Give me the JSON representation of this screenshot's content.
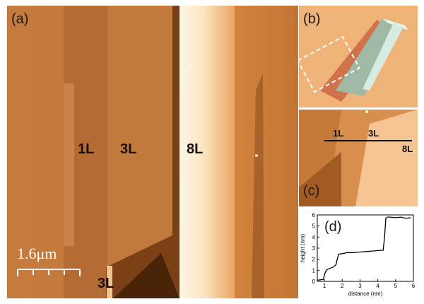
{
  "panel_a": {
    "label": "(a)",
    "layers": [
      "1L",
      "3L",
      "8L",
      "3L"
    ],
    "scale_bar": "1.6μm"
  },
  "panel_b": {
    "label": "(b)"
  },
  "panel_c": {
    "label": "(c)",
    "layers": [
      "1L",
      "3L",
      "8L"
    ]
  },
  "chart_data": {
    "type": "line",
    "panel_label": "(d)",
    "xlabel": "distance (nm)",
    "ylabel": "height (nm)",
    "xlim": [
      0.6,
      6.0
    ],
    "ylim": [
      0,
      6
    ],
    "xticks": [
      1,
      2,
      3,
      4,
      5,
      6
    ],
    "yticks": [
      0,
      1,
      2,
      3,
      4,
      5,
      6
    ],
    "grid": false,
    "series": [
      {
        "x": [
          0.6,
          0.8,
          0.95,
          1.0,
          1.1,
          1.2,
          1.35,
          1.5,
          1.65,
          1.72,
          1.8,
          2.0,
          2.3,
          2.6,
          3.0,
          3.4,
          3.8,
          4.1,
          4.3,
          4.38,
          4.45,
          4.55,
          4.7,
          5.0,
          5.3,
          5.6,
          5.85
        ],
        "y": [
          0.1,
          0.15,
          0.2,
          0.6,
          1.0,
          1.1,
          1.2,
          1.3,
          1.5,
          2.0,
          2.45,
          2.5,
          2.6,
          2.6,
          2.65,
          2.7,
          2.75,
          2.8,
          2.8,
          4.0,
          5.7,
          5.8,
          5.8,
          5.75,
          5.8,
          5.7,
          5.75
        ]
      }
    ]
  }
}
